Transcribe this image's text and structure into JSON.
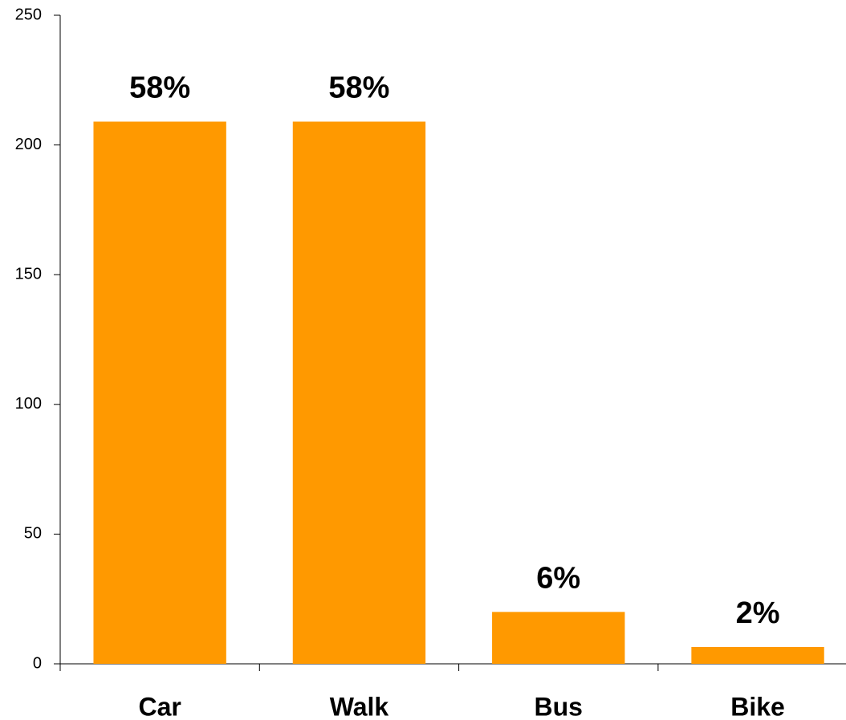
{
  "chart_data": {
    "type": "bar",
    "categories": [
      "Car",
      "Walk",
      "Bus",
      "Bike"
    ],
    "values": [
      209,
      209,
      20,
      6.5
    ],
    "value_labels": [
      "58%",
      "58%",
      "6%",
      "2%"
    ],
    "color": "#ff9900",
    "ylim": [
      0,
      250
    ],
    "yticks": [
      0,
      50,
      100,
      150,
      200,
      250
    ],
    "grid": false
  }
}
